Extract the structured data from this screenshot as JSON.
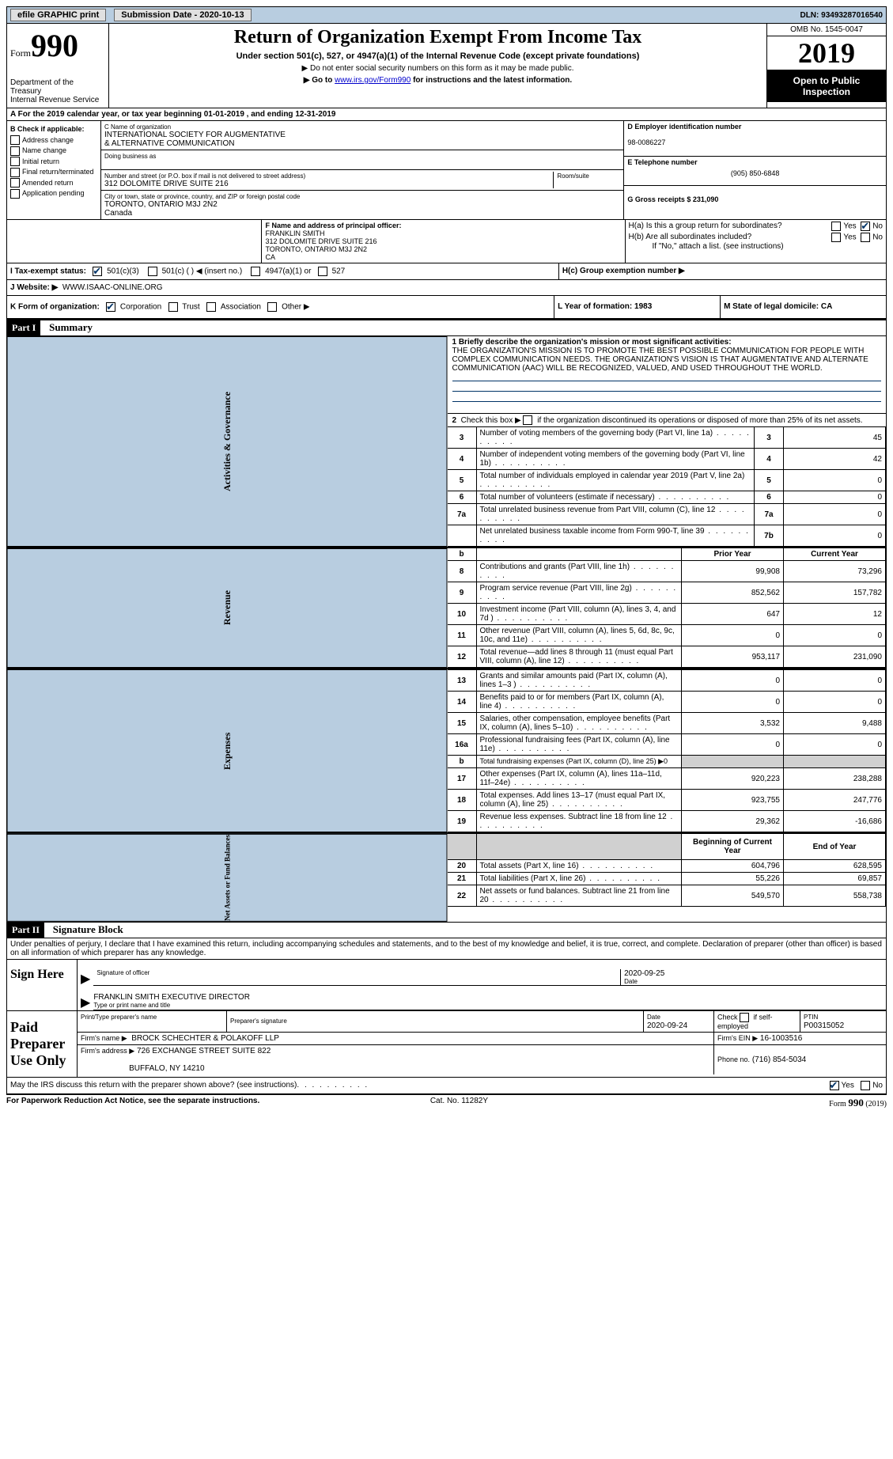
{
  "topbar": {
    "efile": "efile GRAPHIC print",
    "submission_label": "Submission Date - 2020-10-13",
    "dln_label": "DLN: 93493287016540"
  },
  "header": {
    "form_word": "Form",
    "form_num": "990",
    "dept": "Department of the Treasury",
    "irs": "Internal Revenue Service",
    "title": "Return of Organization Exempt From Income Tax",
    "subtitle": "Under section 501(c), 527, or 4947(a)(1) of the Internal Revenue Code (except private foundations)",
    "instr1": "▶ Do not enter social security numbers on this form as it may be made public.",
    "instr2_pre": "▶ Go to ",
    "instr2_link": "www.irs.gov/Form990",
    "instr2_post": " for instructions and the latest information.",
    "omb": "OMB No. 1545-0047",
    "year": "2019",
    "openpub": "Open to Public Inspection"
  },
  "line_a": "A For the 2019 calendar year, or tax year beginning 01-01-2019     , and ending 12-31-2019",
  "box_b": {
    "header": "B Check if applicable:",
    "items": [
      "Address change",
      "Name change",
      "Initial return",
      "Final return/terminated",
      "Amended return",
      "Application pending"
    ]
  },
  "box_c": {
    "label": "C Name of organization",
    "name1": "INTERNATIONAL SOCIETY FOR AUGMENTATIVE",
    "name2": "& ALTERNATIVE COMMUNICATION",
    "dba_label": "Doing business as",
    "addr_label": "Number and street (or P.O. box if mail is not delivered to street address)",
    "room_label": "Room/suite",
    "addr": "312 DOLOMITE DRIVE SUITE 216",
    "city_label": "City or town, state or province, country, and ZIP or foreign postal code",
    "city": "TORONTO, ONTARIO  M3J 2N2",
    "country": "Canada"
  },
  "box_d": {
    "label": "D Employer identification number",
    "value": "98-0086227"
  },
  "box_e": {
    "label": "E Telephone number",
    "value": "(905) 850-6848"
  },
  "box_g": {
    "label": "G Gross receipts $ 231,090"
  },
  "box_f": {
    "label": "F Name and address of principal officer:",
    "name": "FRANKLIN SMITH",
    "addr1": "312 DOLOMITE DRIVE SUITE 216",
    "addr2": "TORONTO, ONTARIO   M3J 2N2",
    "addr3": "CA"
  },
  "box_h": {
    "ha": "H(a)  Is this a group return for subordinates?",
    "hb": "H(b)  Are all subordinates included?",
    "hnote": "If \"No,\" attach a list. (see instructions)",
    "hc": "H(c)  Group exemption number ▶"
  },
  "tax_status": {
    "label": "I     Tax-exempt status:",
    "opt1": "501(c)(3)",
    "opt2": "501(c) (  ) ◀ (insert no.)",
    "opt3": "4947(a)(1) or",
    "opt4": "527"
  },
  "website": {
    "label": "J    Website: ▶",
    "value": "WWW.ISAAC-ONLINE.ORG"
  },
  "line_k": "K Form of organization:",
  "k_opts": [
    "Corporation",
    "Trust",
    "Association",
    "Other ▶"
  ],
  "line_l": "L Year of formation: 1983",
  "line_m": "M State of legal domicile: CA",
  "part1": {
    "header": "Part I",
    "title": "Summary",
    "q1_label": "1   Briefly describe the organization's mission or most significant activities:",
    "q1_text": "THE ORGANIZATION'S MISSION IS TO PROMOTE THE BEST POSSIBLE COMMUNICATION FOR PEOPLE WITH COMPLEX COMMUNICATION NEEDS. THE ORGANIZATION'S VISION IS THAT AUGMENTATIVE AND ALTERNATE COMMUNICATION (AAC) WILL BE RECOGNIZED, VALUED, AND USED THROUGHOUT THE WORLD.",
    "q2": "2   Check this box ▶         if the organization discontinued its operations or disposed of more than 25% of its net assets.",
    "rows_ag": [
      {
        "n": "3",
        "desc": "Number of voting members of the governing body (Part VI, line 1a)",
        "c": "3",
        "v": "45"
      },
      {
        "n": "4",
        "desc": "Number of independent voting members of the governing body (Part VI, line 1b)",
        "c": "4",
        "v": "42"
      },
      {
        "n": "5",
        "desc": "Total number of individuals employed in calendar year 2019 (Part V, line 2a)",
        "c": "5",
        "v": "0"
      },
      {
        "n": "6",
        "desc": "Total number of volunteers (estimate if necessary)",
        "c": "6",
        "v": "0"
      },
      {
        "n": "7a",
        "desc": "Total unrelated business revenue from Part VIII, column (C), line 12",
        "c": "7a",
        "v": "0"
      },
      {
        "n": "",
        "desc": "Net unrelated business taxable income from Form 990-T, line 39",
        "c": "7b",
        "v": "0"
      }
    ],
    "hdr_b": "b",
    "hdr_prior": "Prior Year",
    "hdr_current": "Current Year",
    "rows_rev": [
      {
        "n": "8",
        "desc": "Contributions and grants (Part VIII, line 1h)",
        "p": "99,908",
        "c": "73,296"
      },
      {
        "n": "9",
        "desc": "Program service revenue (Part VIII, line 2g)",
        "p": "852,562",
        "c": "157,782"
      },
      {
        "n": "10",
        "desc": "Investment income (Part VIII, column (A), lines 3, 4, and 7d )",
        "p": "647",
        "c": "12"
      },
      {
        "n": "11",
        "desc": "Other revenue (Part VIII, column (A), lines 5, 6d, 8c, 9c, 10c, and 11e)",
        "p": "0",
        "c": "0"
      },
      {
        "n": "12",
        "desc": "Total revenue—add lines 8 through 11 (must equal Part VIII, column (A), line 12)",
        "p": "953,117",
        "c": "231,090"
      }
    ],
    "rows_exp": [
      {
        "n": "13",
        "desc": "Grants and similar amounts paid (Part IX, column (A), lines 1–3 )",
        "p": "0",
        "c": "0"
      },
      {
        "n": "14",
        "desc": "Benefits paid to or for members (Part IX, column (A), line 4)",
        "p": "0",
        "c": "0"
      },
      {
        "n": "15",
        "desc": "Salaries, other compensation, employee benefits (Part IX, column (A), lines 5–10)",
        "p": "3,532",
        "c": "9,488"
      },
      {
        "n": "16a",
        "desc": "Professional fundraising fees (Part IX, column (A), line 11e)",
        "p": "0",
        "c": "0"
      },
      {
        "n": "b",
        "desc": "Total fundraising expenses (Part IX, column (D), line 25) ▶0",
        "p": "",
        "c": "",
        "shade": true
      },
      {
        "n": "17",
        "desc": "Other expenses (Part IX, column (A), lines 11a–11d, 11f–24e)",
        "p": "920,223",
        "c": "238,288"
      },
      {
        "n": "18",
        "desc": "Total expenses. Add lines 13–17 (must equal Part IX, column (A), line 25)",
        "p": "923,755",
        "c": "247,776"
      },
      {
        "n": "19",
        "desc": "Revenue less expenses. Subtract line 18 from line 12",
        "p": "29,362",
        "c": "-16,686"
      }
    ],
    "hdr_begin": "Beginning of Current Year",
    "hdr_end": "End of Year",
    "rows_net": [
      {
        "n": "20",
        "desc": "Total assets (Part X, line 16)",
        "p": "604,796",
        "c": "628,595"
      },
      {
        "n": "21",
        "desc": "Total liabilities (Part X, line 26)",
        "p": "55,226",
        "c": "69,857"
      },
      {
        "n": "22",
        "desc": "Net assets or fund balances. Subtract line 21 from line 20",
        "p": "549,570",
        "c": "558,738"
      }
    ],
    "vlabels": {
      "ag": "Activities & Governance",
      "rev": "Revenue",
      "exp": "Expenses",
      "net": "Net Assets or Fund Balances"
    }
  },
  "part2": {
    "header": "Part II",
    "title": "Signature Block",
    "decl": "Under penalties of perjury, I declare that I have examined this return, including accompanying schedules and statements, and to the best of my knowledge and belief, it is true, correct, and complete. Declaration of preparer (other than officer) is based on all information of which preparer has any knowledge.",
    "sign_here": "Sign Here",
    "sig_officer": "Signature of officer",
    "sig_date": "2020-09-25",
    "date_label": "Date",
    "officer_name": "FRANKLIN SMITH  EXECUTIVE DIRECTOR",
    "officer_type": "Type or print name and title",
    "paid": "Paid Preparer Use Only",
    "prep_name_label": "Print/Type preparer's name",
    "prep_sig_label": "Preparer's signature",
    "prep_date_label": "Date",
    "prep_date": "2020-09-24",
    "self_emp": "Check         if self-employed",
    "ptin_label": "PTIN",
    "ptin": "P00315052",
    "firm_name_label": "Firm's name      ▶",
    "firm_name": "BROCK SCHECHTER & POLAKOFF LLP",
    "firm_ein_label": "Firm's EIN ▶",
    "firm_ein": "16-1003516",
    "firm_addr_label": "Firm's address ▶",
    "firm_addr1": "726 EXCHANGE STREET SUITE 822",
    "firm_addr2": "BUFFALO, NY  14210",
    "phone_label": "Phone no.",
    "phone": "(716) 854-5034",
    "discuss": "May the IRS discuss this return with the preparer shown above? (see instructions)",
    "yes": "Yes",
    "no": "No"
  },
  "footer": {
    "left": "For Paperwork Reduction Act Notice, see the separate instructions.",
    "cat": "Cat. No. 11282Y",
    "form": "Form 990 (2019)"
  }
}
